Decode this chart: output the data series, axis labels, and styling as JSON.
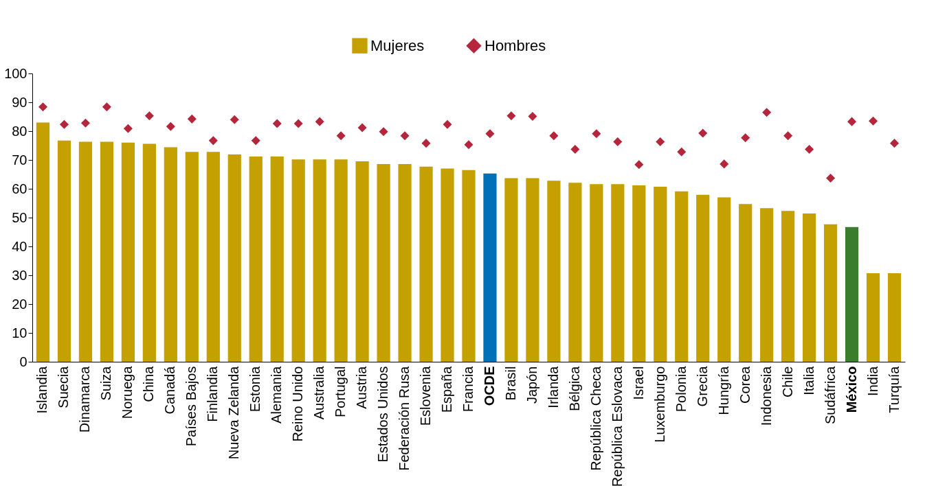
{
  "chart_data": {
    "type": "bar",
    "categories": [
      "Islandia",
      "Suecia",
      "Dinamarca",
      "Suiza",
      "Noruega",
      "China",
      "Canadá",
      "Países Bajos",
      "Finlandia",
      "Nueva Zelanda",
      "Estonia",
      "Alemania",
      "Reino Unido",
      "Australia",
      "Portugal",
      "Austria",
      "Estados Unidos",
      "Federación Rusa",
      "Eslovenia",
      "España",
      "Francia",
      "OCDE",
      "Brasil",
      "Japón",
      "Irlanda",
      "Bélgica",
      "República Checa",
      "República Eslovaca",
      "Israel",
      "Luxemburgo",
      "Polonia",
      "Grecia",
      "Hungría",
      "Corea",
      "Indonesia",
      "Chile",
      "Italia",
      "Sudáfrica",
      "México",
      "India",
      "Turquía"
    ],
    "series": [
      {
        "name": "Mujeres",
        "color": "#c4a000",
        "colors": [
          "#c4a000",
          "#c4a000",
          "#c4a000",
          "#c4a000",
          "#c4a000",
          "#c4a000",
          "#c4a000",
          "#c4a000",
          "#c4a000",
          "#c4a000",
          "#c4a000",
          "#c4a000",
          "#c4a000",
          "#c4a000",
          "#c4a000",
          "#c4a000",
          "#c4a000",
          "#c4a000",
          "#c4a000",
          "#c4a000",
          "#c4a000",
          "#0070b8",
          "#c4a000",
          "#c4a000",
          "#c4a000",
          "#c4a000",
          "#c4a000",
          "#c4a000",
          "#c4a000",
          "#c4a000",
          "#c4a000",
          "#c4a000",
          "#c4a000",
          "#c4a000",
          "#c4a000",
          "#c4a000",
          "#c4a000",
          "#c4a000",
          "#3a7d2c",
          "#c4a000",
          "#c4a000"
        ],
        "values": [
          83,
          76.7,
          76.3,
          76.3,
          76,
          75.6,
          74.4,
          72.8,
          72.8,
          71.9,
          71.2,
          71.2,
          70.2,
          70.2,
          70.2,
          69.5,
          68.6,
          68.6,
          67.7,
          67,
          66.5,
          65.3,
          63.7,
          63.7,
          62.8,
          62.1,
          61.6,
          61.6,
          61.2,
          60.7,
          59.1,
          57.9,
          57,
          54.7,
          53.3,
          52.3,
          51.4,
          47.7,
          46.7,
          30.7,
          30.7
        ]
      },
      {
        "name": "Hombres",
        "type": "scatter",
        "marker": "diamond",
        "color": "#b5263c",
        "values": [
          88.4,
          82.3,
          82.8,
          88.4,
          80.9,
          85.3,
          81.6,
          84.2,
          76.7,
          84,
          76.7,
          82.6,
          82.6,
          83.3,
          78.4,
          81.2,
          79.8,
          78.4,
          75.8,
          82.3,
          75.3,
          79.1,
          85.3,
          85.1,
          78.4,
          73.7,
          79.1,
          76.3,
          68.4,
          76.3,
          72.8,
          79.3,
          68.6,
          77.7,
          86.5,
          78.4,
          73.7,
          63.7,
          83.3,
          83.5,
          75.8
        ]
      }
    ],
    "ylim": [
      0,
      100
    ],
    "yticks": [
      0,
      10,
      20,
      30,
      40,
      50,
      60,
      70,
      80,
      90,
      100
    ],
    "grid": false,
    "legend": "top"
  }
}
